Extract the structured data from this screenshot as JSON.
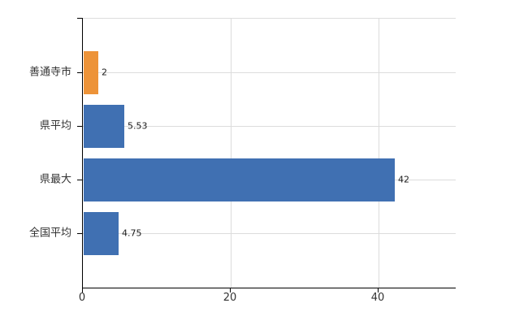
{
  "chart_data": {
    "type": "bar",
    "orientation": "horizontal",
    "title": "",
    "categories": [
      "善通寺市",
      "県平均",
      "県最大",
      "全国平均"
    ],
    "values": [
      2,
      5.53,
      42,
      4.75
    ],
    "value_labels": [
      "2",
      "5.53",
      "42",
      "4.75"
    ],
    "series": [
      {
        "name": "",
        "values": [
          2,
          5.53,
          42,
          4.75
        ]
      }
    ],
    "bar_colors": [
      "#ED9338",
      "#4070B2",
      "#4070B2",
      "#4070B2"
    ],
    "highlight_category": "善通寺市",
    "xlabel": "",
    "ylabel": "",
    "xlim": [
      0,
      50.4
    ],
    "xticks": [
      0,
      20,
      40
    ],
    "xtick_labels": [
      "0",
      "20",
      "40"
    ],
    "grid": true,
    "legend": false
  },
  "colors": {
    "background": "#FFFFFF",
    "axis": "#000000",
    "grid": "#DCDCDC",
    "category_label": "#333333",
    "value_label": "#1A1A1A",
    "tick_label": "#333333",
    "bar_blue": "#4070B2",
    "bar_orange": "#ED9338"
  }
}
